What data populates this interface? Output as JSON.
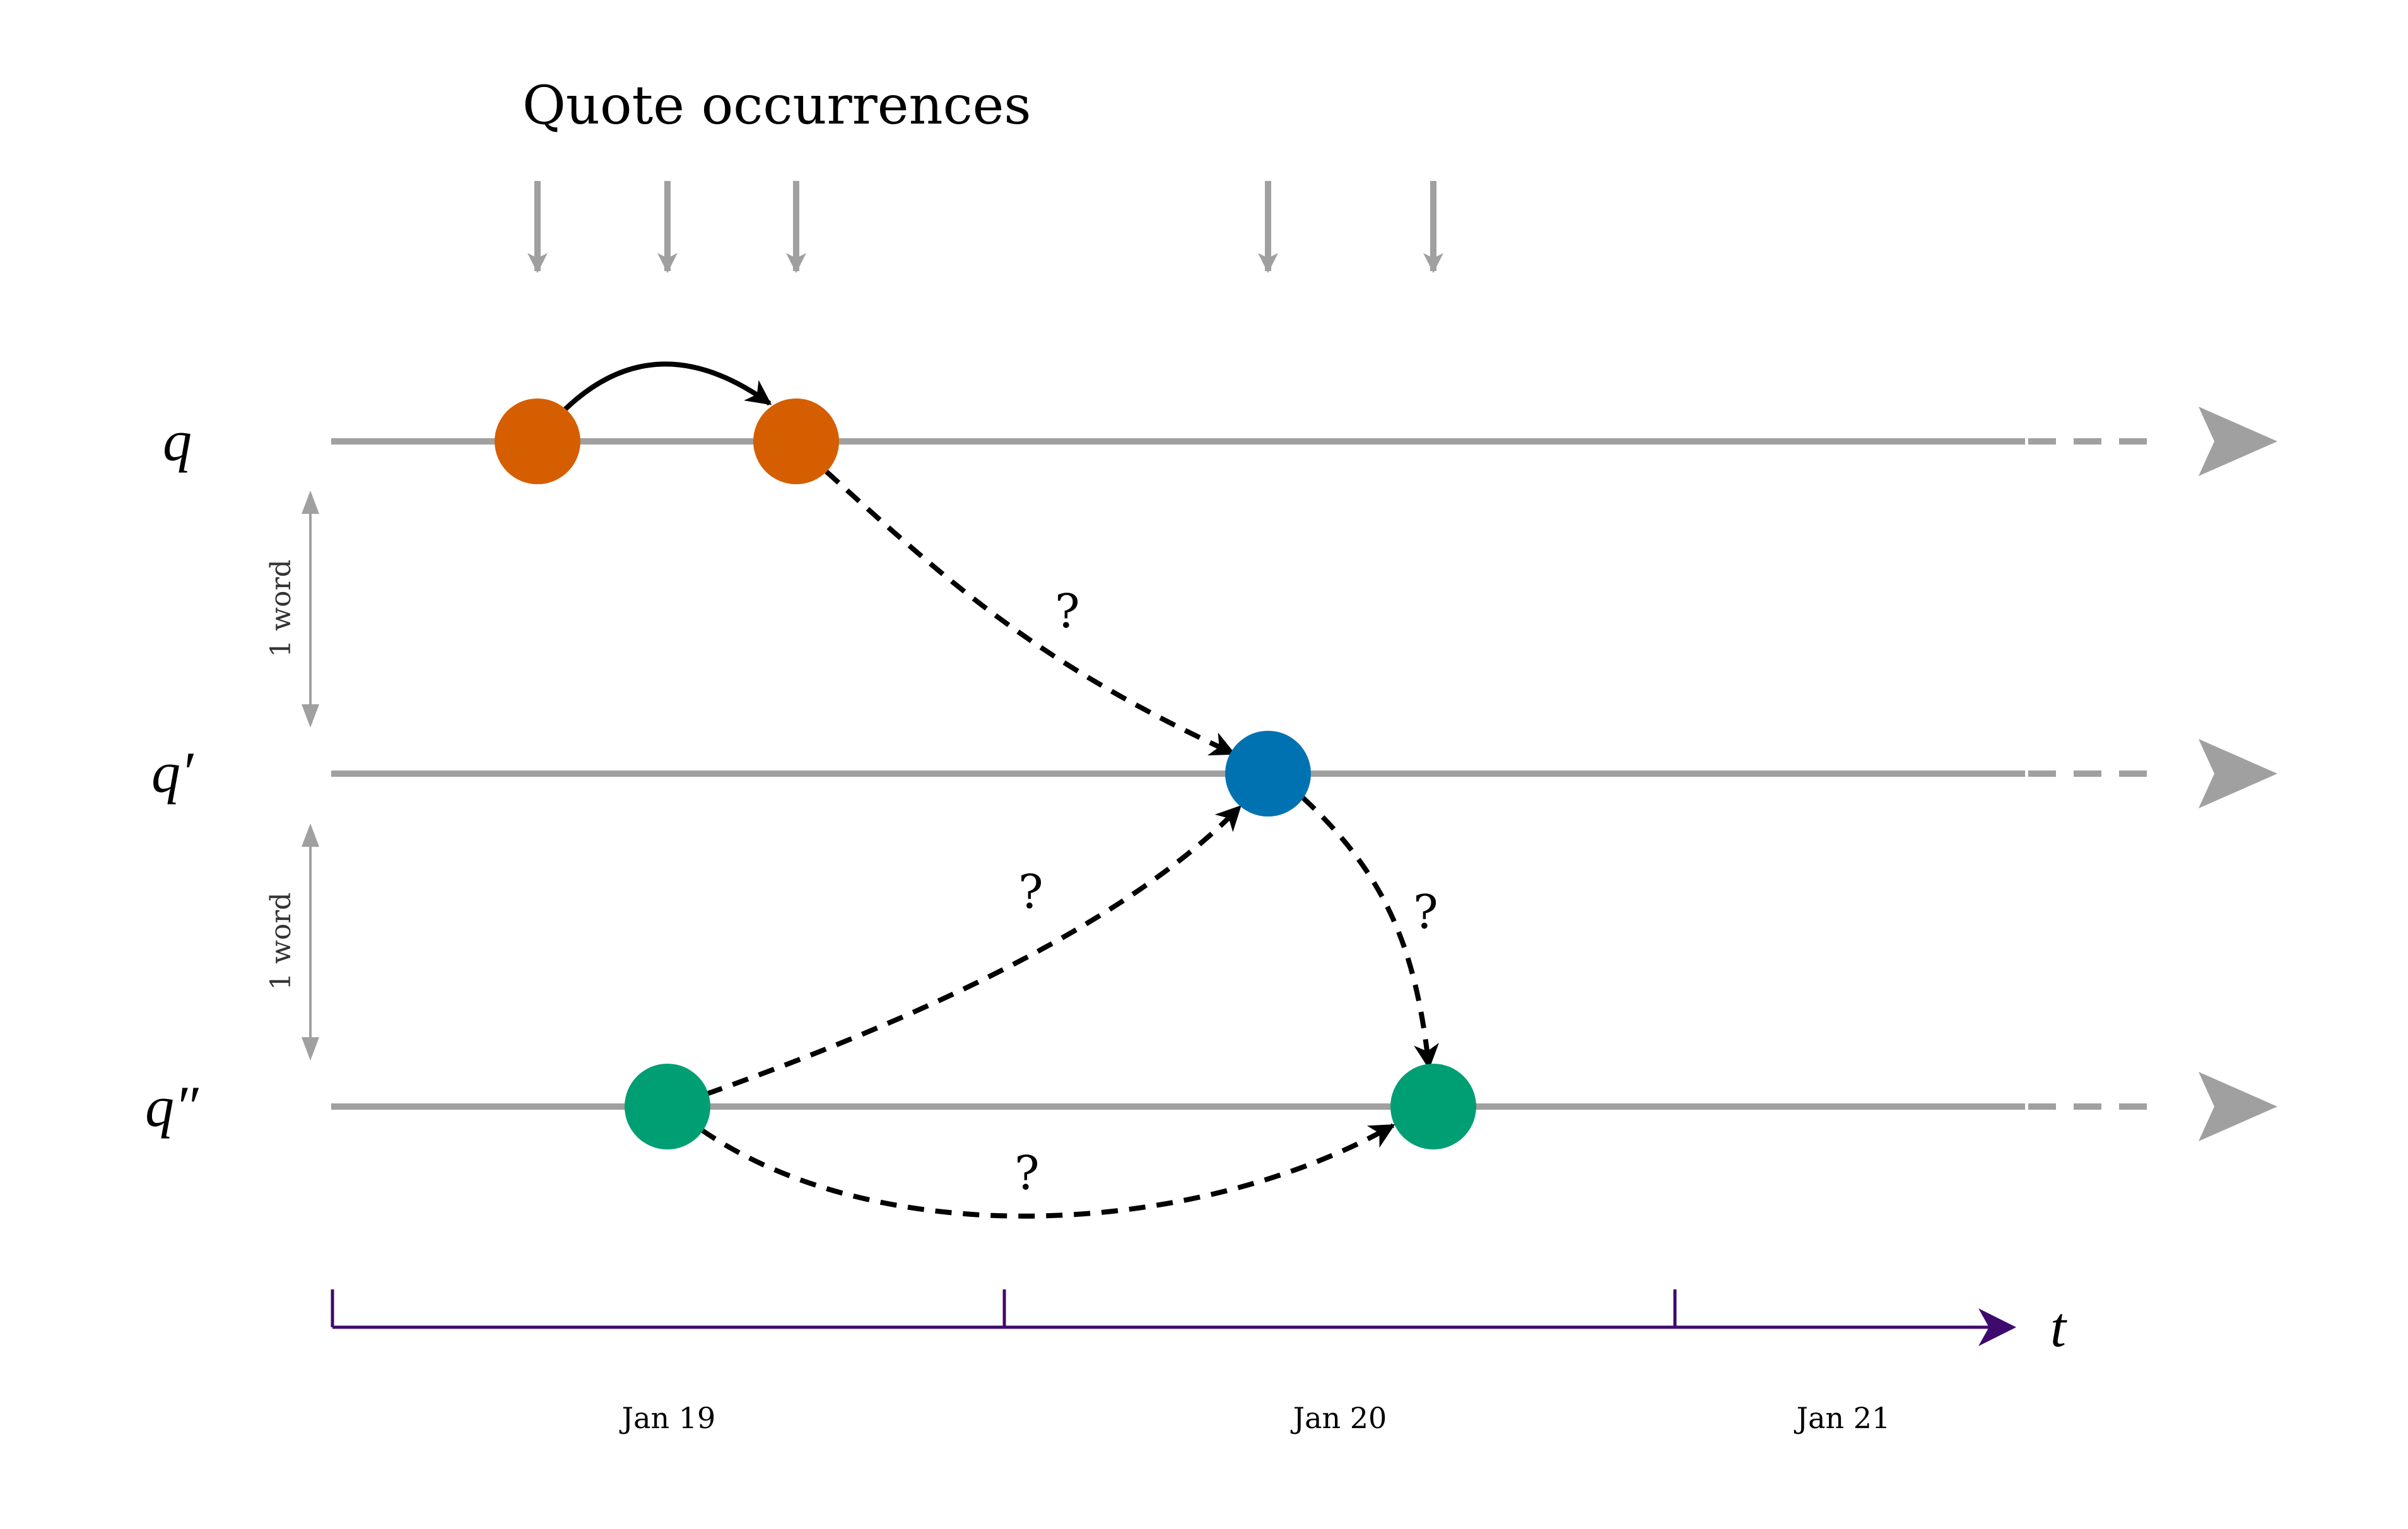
{
  "title": "Quote occurrences",
  "colors": {
    "orange": "#d55e00",
    "blue": "#0072b2",
    "green": "#009e73",
    "timeline_gray": "#a0a0a0",
    "axis_purple": "#3f0a6e",
    "arrow_black": "#000000"
  },
  "rows": [
    {
      "id": "q",
      "label": "q",
      "color": "#d55e00"
    },
    {
      "id": "q1",
      "label": "q′",
      "color": "#0072b2"
    },
    {
      "id": "q2",
      "label": "q″",
      "color": "#009e73"
    }
  ],
  "gaps": [
    {
      "label": "1 word"
    },
    {
      "label": "1 word"
    }
  ],
  "uncertain_links": [
    {
      "label": "?"
    },
    {
      "label": "?"
    },
    {
      "label": "?"
    },
    {
      "label": "?"
    }
  ],
  "time_axis": {
    "label": "t",
    "days": [
      "Jan 19",
      "Jan 20",
      "Jan 21"
    ]
  }
}
